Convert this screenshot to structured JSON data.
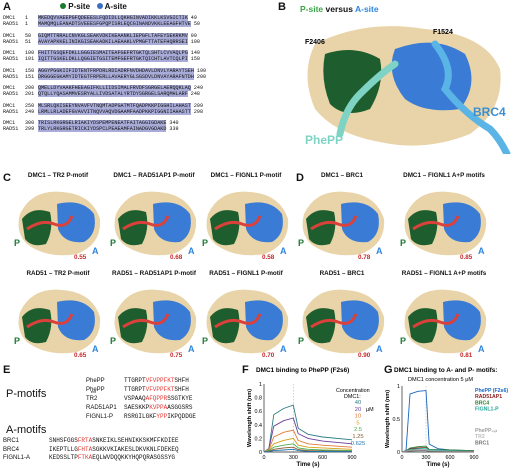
{
  "panels": {
    "A": "A",
    "B": "B",
    "C": "C",
    "D": "D",
    "E": "E",
    "F": "F",
    "G": "G"
  },
  "legend": {
    "p_site": "P-site",
    "a_site": "A-site"
  },
  "alignment": [
    {
      "start1": "1",
      "seq1": "MKEDQVVAEEPGFQDEEESLFQDIDLLQKHGINVADIKKLKSVGICTIK",
      "end1": "49",
      "start2": "1",
      "seq2": "MAMQMQLEANADTSVEEESFGPQPISRLEQCGINANDVKKLEEAGFHTVE",
      "end2": "50"
    },
    {
      "start1": "50",
      "seq1": "GIQMTTRRALCNVKGLSEAKVDKIKEAANKLIEPGFLTAFEYSEKRKMV",
      "end1": "99",
      "start2": "51",
      "seq2": "AVAYAPKKELINIKGISEAKADKILAEAAKLVPMGFTTATEFHQRRSEI",
      "end2": "100"
    },
    {
      "start1": "100",
      "seq1": "FHITTGSQEFDKLLGGGIESMAITEAFGEFRTGKTQLSHTLCVVAQLPG",
      "end1": "149",
      "start2": "101",
      "seq2": "IQITTGSKELDKLLQGGIETGSITEMFGEFRTGKTQICHTLAVTCQLPI",
      "end2": "150"
    },
    {
      "start1": "150",
      "seq1": "AGGYPGGKIIFIDTENTFRPDRLRDIADRFNVDHDAVLDNVLYARAYTSEH",
      "end1": "199",
      "start2": "151",
      "seq2": "DRGGGEGKAMYIDTEGTFRPERLLAVAERYGLSGSDVLDNVAYARAFNTDH",
      "end2": "200"
    },
    {
      "start1": "200",
      "seq1": "QMELLDYVAAKFHEEAGIFKLLIIDSIMALFRVDFSGRGELAERQQKLAQ",
      "end1": "249",
      "start2": "201",
      "seq2": "QTQLLYQASAMMVESRYALLIVDSATALYRTDYSGRGELSARQMHLARF",
      "end2": "248"
    },
    {
      "start1": "250",
      "seq1": "MLSRLQKISEEYNVAVFVTNQMTADPGATMTFQADPKKPIGGHILAHAST",
      "end1": "299",
      "start2": "249",
      "seq2": "LRMLLRLADEFGVAVVITNQVVAQVDGAAMFAADPKKPIGGNIIAHASTT",
      "end2": "298"
    },
    {
      "start1": "300",
      "seq1": "TRISLRKGRGELRIAKIYDSPEMPENEATFAITAGGIGDAKE",
      "end1": "340",
      "start2": "299",
      "seq2": "TRLYLRKGRGETRICKIYDSPCLPEAEAMFAINADGVGDAKD",
      "end2": "339"
    }
  ],
  "alignment_names": {
    "dmc1": "DMC1",
    "rad51": "RAD51"
  },
  "panelB": {
    "title_p": "P-site",
    "title_mid": " versus ",
    "title_a": "A-site",
    "label_f2406": "F2406",
    "label_f1524": "F1524",
    "label_phepp": "PhePP",
    "label_brc4": "BRC4"
  },
  "structures": {
    "row1": [
      {
        "title": "DMC1 – TR2 P-motif",
        "score": "0.55"
      },
      {
        "title": "DMC1 – RAD51AP1 P-motif",
        "score": "0.68"
      },
      {
        "title": "DMC1 – FIGNL1 P-motif",
        "score": "0.58"
      },
      {
        "title": "DMC1 – BRC1",
        "score": "0.78"
      },
      {
        "title": "DMC1 – FIGNL1 A+P motifs",
        "score": "0.85"
      }
    ],
    "row2": [
      {
        "title": "RAD51 – TR2 P-motif",
        "score": "0.65"
      },
      {
        "title": "RAD51 – RAD51AP1 P-motif",
        "score": "0.75"
      },
      {
        "title": "RAD51 – FIGNL1 P-motif",
        "score": "0.70"
      },
      {
        "title": "RAD51 – BRC1",
        "score": "0.90"
      },
      {
        "title": "RAD51 – FIGNL1 A+P motifs",
        "score": "0.81"
      }
    ],
    "site_p": "P",
    "site_a": "A"
  },
  "motifs": {
    "p_title": "P-motifs",
    "a_title": "A-motifs",
    "p_rows": [
      {
        "name": "PhePP",
        "pre": "TTGRPT",
        "red": "VFVPPFKT",
        "post": "SHFH"
      },
      {
        "name": "PhePP",
        "sub": "ext",
        "pre": "TTGRPT",
        "red": "VFVPPFKT",
        "post": "SHFH"
      },
      {
        "name": "TR2",
        "pre": "VSPAAQ",
        "red": "AFQPPR",
        "post": "SSGTKYE"
      },
      {
        "name": "RAD51AP1",
        "pre": "SAESKKP",
        "red": "KVPPA",
        "post": "ASGGSRS"
      },
      {
        "name": "FIGNL1-P",
        "pre": "RSRGILGKF",
        "red": "YPP",
        "post": "IKPQDDGE"
      }
    ],
    "a_rows": [
      {
        "name": "BRC1",
        "seq": "SNHSFGGS",
        "red": "FRTA",
        "post": "SNKEIKLSEHNIKKSKMFFKDIEE"
      },
      {
        "name": "BRC4",
        "seq": "IKEPTLLG",
        "red": "FHTA",
        "post": "SGKKVKIAKESLDKVKNLFDEKEQ"
      },
      {
        "name": "FIGNL1-A",
        "seq": "KEDSSLTP",
        "red": "FTKA",
        "post": "EQLWVDQQKKYHQPQRASGSSYG"
      }
    ]
  },
  "chart_data": [
    {
      "type": "line",
      "title": "DMC1 binding to PhePP (F2s6)",
      "xlabel": "Time (s)",
      "ylabel": "Wavelength shift (nm)",
      "xlim": [
        0,
        900
      ],
      "ylim": [
        0,
        1
      ],
      "xticks": [
        "0",
        "300",
        "600",
        "900"
      ],
      "yticks": [
        "0",
        "0.2",
        "0.4",
        "0.6",
        "0.8",
        "1"
      ],
      "legend_title": "Concentration",
      "legend_sub": "DMC1:",
      "unit": "μM",
      "series": [
        {
          "name": "40",
          "color": "#2e7d86",
          "values": [
            [
              0,
              0
            ],
            [
              50,
              0.05
            ],
            [
              100,
              0.55
            ],
            [
              200,
              0.64
            ],
            [
              300,
              0.69
            ],
            [
              350,
              0.35
            ],
            [
              450,
              0.26
            ],
            [
              600,
              0.22
            ],
            [
              900,
              0.18
            ]
          ]
        },
        {
          "name": "20",
          "color": "#6a3d9a",
          "values": [
            [
              0,
              0
            ],
            [
              50,
              0.05
            ],
            [
              100,
              0.38
            ],
            [
              200,
              0.46
            ],
            [
              300,
              0.5
            ],
            [
              350,
              0.27
            ],
            [
              450,
              0.2
            ],
            [
              600,
              0.16
            ],
            [
              900,
              0.12
            ]
          ]
        },
        {
          "name": "10",
          "color": "#e07b39",
          "values": [
            [
              0,
              0
            ],
            [
              50,
              0.04
            ],
            [
              100,
              0.22
            ],
            [
              200,
              0.29
            ],
            [
              300,
              0.32
            ],
            [
              350,
              0.17
            ],
            [
              450,
              0.12
            ],
            [
              600,
              0.1
            ],
            [
              900,
              0.07
            ]
          ]
        },
        {
          "name": "5",
          "color": "#d4a017",
          "values": [
            [
              0,
              0
            ],
            [
              50,
              0.03
            ],
            [
              100,
              0.12
            ],
            [
              200,
              0.17
            ],
            [
              300,
              0.2
            ],
            [
              350,
              0.1
            ],
            [
              450,
              0.07
            ],
            [
              600,
              0.06
            ],
            [
              900,
              0.04
            ]
          ]
        },
        {
          "name": "2.5",
          "color": "#4caf50",
          "values": [
            [
              0,
              0
            ],
            [
              50,
              0.02
            ],
            [
              100,
              0.07
            ],
            [
              200,
              0.1
            ],
            [
              300,
              0.12
            ],
            [
              350,
              0.06
            ],
            [
              450,
              0.04
            ],
            [
              600,
              0.03
            ],
            [
              900,
              0.02
            ]
          ]
        },
        {
          "name": "1.25",
          "color": "#8b5a2b",
          "values": [
            [
              0,
              0
            ],
            [
              50,
              0.01
            ],
            [
              100,
              0.04
            ],
            [
              200,
              0.06
            ],
            [
              300,
              0.07
            ],
            [
              350,
              0.035
            ],
            [
              450,
              0.02
            ],
            [
              600,
              0.015
            ],
            [
              900,
              0.01
            ]
          ]
        },
        {
          "name": "0.625",
          "color": "#1f77b4",
          "values": [
            [
              0,
              0
            ],
            [
              50,
              0.005
            ],
            [
              100,
              0.02
            ],
            [
              200,
              0.03
            ],
            [
              300,
              0.04
            ],
            [
              350,
              0.02
            ],
            [
              450,
              0.01
            ],
            [
              600,
              0.008
            ],
            [
              900,
              0.005
            ]
          ]
        }
      ]
    },
    {
      "type": "line",
      "title": "DMC1 binding to A- and P- motifs:",
      "subtitle": "DMC1 concentration 5 μM",
      "xlabel": "Time (s)",
      "ylabel": "Wavelength shift (nm)",
      "xlim": [
        0,
        900
      ],
      "ylim": [
        0,
        1
      ],
      "xticks": [
        "0",
        "300",
        "600",
        "900"
      ],
      "yticks": [
        "0",
        "0.5",
        "1"
      ],
      "series": [
        {
          "name": "PhePP (F2s6)",
          "color": "#1565c0",
          "values": [
            [
              0,
              0
            ],
            [
              50,
              0.02
            ],
            [
              100,
              0.88
            ],
            [
              200,
              0.92
            ],
            [
              300,
              0.93
            ],
            [
              340,
              0.12
            ],
            [
              450,
              0.05
            ],
            [
              600,
              0.03
            ],
            [
              900,
              0.02
            ]
          ]
        },
        {
          "name": "RAD51AP1",
          "color": "#8b1a1a",
          "values": [
            [
              0,
              0
            ],
            [
              50,
              0.02
            ],
            [
              100,
              0.05
            ],
            [
              200,
              0.06
            ],
            [
              300,
              0.07
            ],
            [
              340,
              0.03
            ],
            [
              600,
              0.02
            ],
            [
              900,
              0.02
            ]
          ]
        },
        {
          "name": "BRC4",
          "color": "#2e7d32",
          "values": [
            [
              0,
              0
            ],
            [
              50,
              0.02
            ],
            [
              100,
              0.06
            ],
            [
              200,
              0.08
            ],
            [
              300,
              0.09
            ],
            [
              340,
              0.04
            ],
            [
              600,
              0.03
            ],
            [
              900,
              0.02
            ]
          ]
        },
        {
          "name": "FIGNL1-P",
          "color": "#26a69a",
          "values": [
            [
              0,
              0
            ],
            [
              50,
              0.01
            ],
            [
              100,
              0.04
            ],
            [
              200,
              0.05
            ],
            [
              300,
              0.06
            ],
            [
              340,
              0.03
            ],
            [
              600,
              0.02
            ],
            [
              900,
              0.01
            ]
          ]
        },
        {
          "name": "PhePP₀ₑₜ",
          "color": "#9e9e9e",
          "values": [
            [
              0,
              0
            ],
            [
              50,
              0.01
            ],
            [
              100,
              0.03
            ],
            [
              200,
              0.035
            ],
            [
              300,
              0.04
            ],
            [
              340,
              0.02
            ],
            [
              600,
              0.01
            ],
            [
              900,
              0.01
            ]
          ]
        },
        {
          "name": "TR2",
          "color": "#bdbdbd",
          "values": [
            [
              0,
              0
            ],
            [
              50,
              0.01
            ],
            [
              100,
              0.02
            ],
            [
              200,
              0.025
            ],
            [
              300,
              0.03
            ],
            [
              340,
              0.015
            ],
            [
              600,
              0.01
            ],
            [
              900,
              0.005
            ]
          ]
        },
        {
          "name": "BRC1",
          "color": "#757575",
          "values": [
            [
              0,
              0
            ],
            [
              50,
              0.005
            ],
            [
              100,
              0.015
            ],
            [
              200,
              0.02
            ],
            [
              300,
              0.02
            ],
            [
              340,
              0.01
            ],
            [
              600,
              0.005
            ],
            [
              900,
              0.005
            ]
          ]
        }
      ]
    }
  ]
}
